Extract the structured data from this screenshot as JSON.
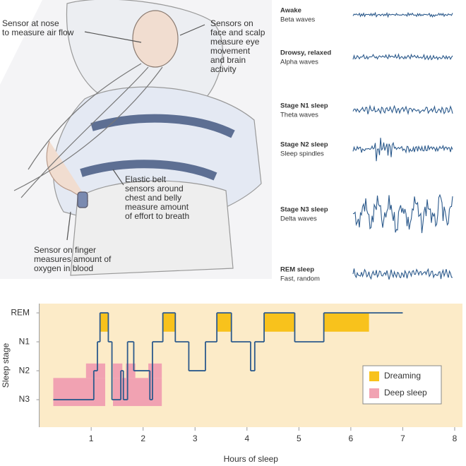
{
  "illustration": {
    "labels": [
      {
        "lines": [
          "Sensor at nose",
          "to measure air flow"
        ]
      },
      {
        "lines": [
          "Sensors on",
          "face and scalp",
          "measure eye",
          "movement",
          "and brain",
          "activity"
        ]
      },
      {
        "lines": [
          "Elastic belt",
          "sensors around",
          "chest and belly",
          "measure amount",
          "of effort to breath"
        ]
      },
      {
        "lines": [
          "Sensor on finger",
          "measures amount of",
          "oxygen in blood"
        ]
      }
    ]
  },
  "waves": [
    {
      "stage": "Awake",
      "wave": "Beta waves"
    },
    {
      "stage": "Drowsy, relaxed",
      "wave": "Alpha waves"
    },
    {
      "stage": "Stage N1 sleep",
      "wave": "Theta waves"
    },
    {
      "stage": "Stage N2 sleep",
      "wave": "Sleep spindles"
    },
    {
      "stage": "Stage N3 sleep",
      "wave": "Delta waves"
    },
    {
      "stage": "REM sleep",
      "wave": "Fast, random"
    }
  ],
  "chart_data": {
    "type": "step",
    "y_label": "Sleep stage",
    "x_label": "Hours of sleep",
    "xlim": [
      0,
      8.15
    ],
    "xticks": [
      1,
      2,
      3,
      4,
      5,
      6,
      7,
      8
    ],
    "ylim": [
      -0.95,
      3.32
    ],
    "yticks": [
      {
        "value": 0,
        "label": "N3"
      },
      {
        "value": 1,
        "label": "N2"
      },
      {
        "value": 2,
        "label": "N1"
      },
      {
        "value": 3,
        "label": "REM"
      }
    ],
    "line": {
      "color": "#2c5a8c",
      "x": [
        0.27,
        1.05,
        1.12,
        1.17,
        1.33,
        1.4,
        1.57,
        1.62,
        1.7,
        1.82,
        2.13,
        2.18,
        2.38,
        2.62,
        2.88,
        3.2,
        3.42,
        3.7,
        4.07,
        4.15,
        4.33,
        4.92,
        5.48,
        7.0
      ],
      "values": [
        0,
        1,
        2,
        3,
        2,
        0,
        1,
        0,
        2,
        1,
        0,
        2,
        3,
        2,
        1,
        2,
        3,
        2,
        1,
        2,
        3,
        2,
        3
      ]
    },
    "regions": [
      {
        "name": "Dreaming",
        "color": "#f8c21c",
        "x": [
          [
            1.17,
            1.33
          ],
          [
            2.38,
            2.62
          ],
          [
            3.42,
            3.7
          ],
          [
            4.33,
            4.92
          ],
          [
            5.48,
            6.35
          ]
        ],
        "y": [
          [
            2.35,
            3
          ],
          [
            2.35,
            3
          ],
          [
            2.35,
            3
          ],
          [
            2.35,
            3
          ],
          [
            2.35,
            3
          ]
        ]
      },
      {
        "name": "Deep sleep",
        "color": "#f1a2b2",
        "x": [
          [
            0.27,
            1.27
          ],
          [
            1.42,
            2.36
          ],
          [
            0.9,
            1.27
          ],
          [
            1.42,
            1.6
          ],
          [
            1.67,
            1.85
          ],
          [
            2.1,
            2.36
          ]
        ],
        "y": [
          [
            -0.22,
            0.75
          ],
          [
            -0.22,
            0.75
          ],
          [
            0.75,
            1.25
          ],
          [
            0.75,
            1.25
          ],
          [
            0.75,
            1.25
          ],
          [
            0.75,
            1.25
          ]
        ]
      }
    ],
    "background": "#fcebc8",
    "legend": "lower right"
  }
}
